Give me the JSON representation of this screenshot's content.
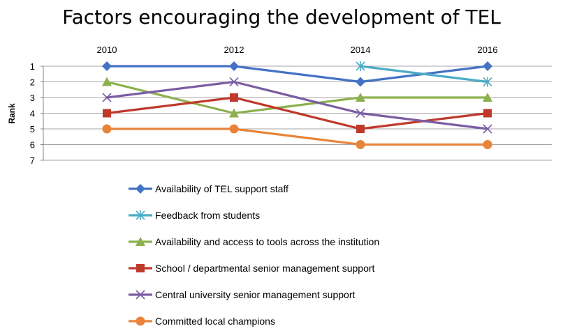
{
  "chart_data": {
    "type": "line",
    "title": "Factors encouraging the development of TEL",
    "xlabel": "",
    "ylabel": "Rank",
    "x": [
      "2010",
      "2012",
      "2014",
      "2016"
    ],
    "ylim": [
      1,
      7
    ],
    "y_ticks": [
      "1",
      "2",
      "3",
      "4",
      "5",
      "6",
      "7"
    ],
    "y_inverted": true,
    "legend_position": "bottom",
    "series": [
      {
        "name": "Availability of TEL support staff",
        "values": [
          1,
          1,
          2,
          1
        ],
        "color": "#4472C4",
        "marker": "diamond"
      },
      {
        "name": "Feedback from students",
        "values": [
          null,
          null,
          1,
          2
        ],
        "color": "#4BACC6",
        "marker": "asterisk"
      },
      {
        "name": "Availability and access to tools across the institution",
        "values": [
          2,
          4,
          3,
          3
        ],
        "color": "#8CB04E",
        "marker": "triangle"
      },
      {
        "name": "School / departmental senior management support",
        "values": [
          4,
          3,
          5,
          4
        ],
        "color": "#C0392B",
        "marker": "square"
      },
      {
        "name": "Central university senior management support",
        "values": [
          3,
          2,
          4,
          5
        ],
        "color": "#7B5DA3",
        "marker": "x"
      },
      {
        "name": "Committed local champions",
        "values": [
          5,
          5,
          6,
          6
        ],
        "color": "#E8843A",
        "marker": "circle"
      }
    ]
  }
}
